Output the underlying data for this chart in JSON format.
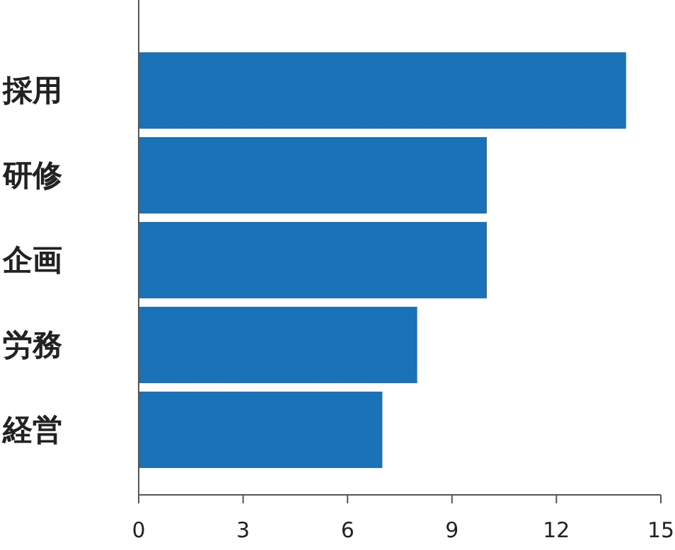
{
  "chart_data": {
    "type": "bar",
    "orientation": "horizontal",
    "categories": [
      "採用",
      "研修",
      "企画",
      "労務",
      "経営"
    ],
    "values": [
      14,
      10,
      10,
      8,
      7
    ],
    "color": "#1a73b8",
    "xlim": [
      0,
      15
    ],
    "xticks": [
      0,
      3,
      6,
      9,
      12,
      15
    ],
    "grid": false
  }
}
